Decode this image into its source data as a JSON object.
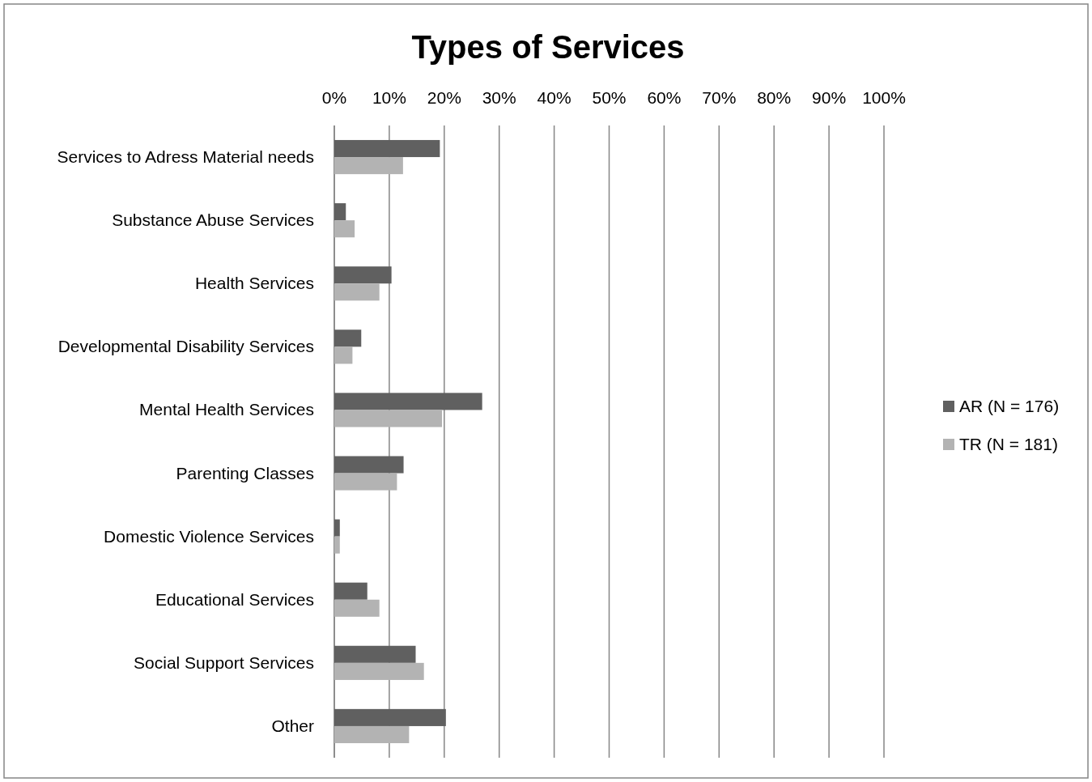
{
  "chart_data": {
    "type": "bar",
    "orientation": "horizontal",
    "title": "Types of Services",
    "categories": [
      "Services to Adress Material needs",
      "Substance Abuse Services",
      "Health Services",
      "Developmental Disability Services",
      "Mental Health Services",
      "Parenting Classes",
      "Domestic Violence Services",
      "Educational Services",
      "Social Support Services",
      "Other"
    ],
    "series": [
      {
        "name": "AR (N = 176)",
        "color": "#606060",
        "values": [
          19.2,
          2.1,
          10.4,
          4.9,
          26.9,
          12.6,
          1.0,
          6.0,
          14.8,
          20.3
        ]
      },
      {
        "name": "TR (N = 181)",
        "color": "#b3b3b3",
        "values": [
          12.5,
          3.7,
          8.2,
          3.3,
          19.6,
          11.4,
          1.0,
          8.2,
          16.3,
          13.6
        ]
      }
    ],
    "xlim": [
      0,
      100
    ],
    "xticks": [
      {
        "value": 0,
        "label": "0%"
      },
      {
        "value": 10,
        "label": "10%"
      },
      {
        "value": 20,
        "label": "20%"
      },
      {
        "value": 30,
        "label": "30%"
      },
      {
        "value": 40,
        "label": "40%"
      },
      {
        "value": 50,
        "label": "50%"
      },
      {
        "value": 60,
        "label": "60%"
      },
      {
        "value": 70,
        "label": "70%"
      },
      {
        "value": 80,
        "label": "80%"
      },
      {
        "value": 90,
        "label": "90%"
      },
      {
        "value": 100,
        "label": "100%"
      }
    ],
    "grid": "x",
    "legend": "right"
  }
}
